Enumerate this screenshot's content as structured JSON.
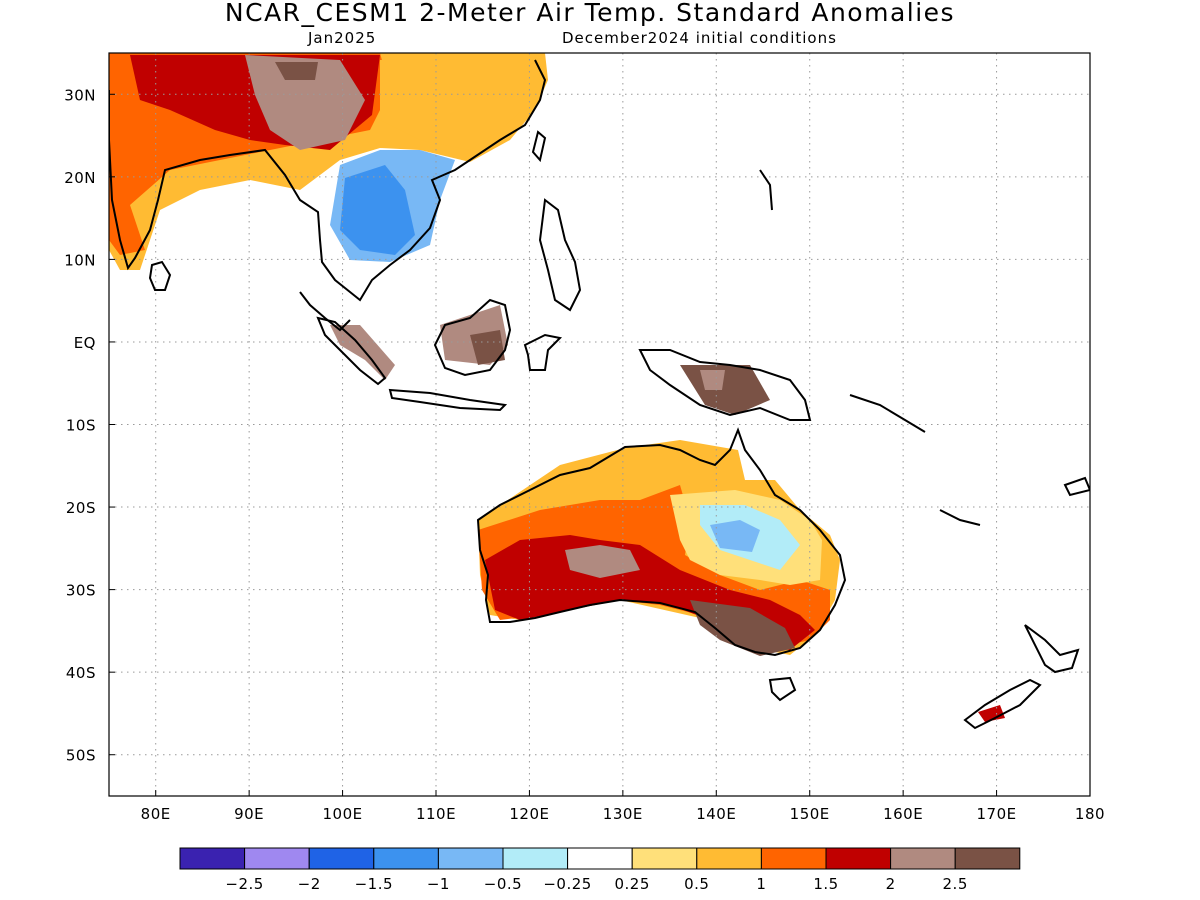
{
  "title": "NCAR_CESM1 2-Meter Air Temp. Standard Anomalies",
  "subtitle_left": "Jan2025",
  "subtitle_right": "December2024 initial conditions",
  "map": {
    "lon_range": [
      75,
      180
    ],
    "lat_range": [
      -55,
      35
    ],
    "grid": "dotted",
    "lat_ticks": [
      {
        "value": 30,
        "label": "30N"
      },
      {
        "value": 20,
        "label": "20N"
      },
      {
        "value": 10,
        "label": "10N"
      },
      {
        "value": 0,
        "label": "EQ"
      },
      {
        "value": -10,
        "label": "10S"
      },
      {
        "value": -20,
        "label": "20S"
      },
      {
        "value": -30,
        "label": "30S"
      },
      {
        "value": -40,
        "label": "40S"
      },
      {
        "value": -50,
        "label": "50S"
      }
    ],
    "lon_ticks": [
      {
        "value": 80,
        "label": "80E"
      },
      {
        "value": 90,
        "label": "90E"
      },
      {
        "value": 100,
        "label": "100E"
      },
      {
        "value": 110,
        "label": "110E"
      },
      {
        "value": 120,
        "label": "120E"
      },
      {
        "value": 130,
        "label": "130E"
      },
      {
        "value": 140,
        "label": "140E"
      },
      {
        "value": 150,
        "label": "150E"
      },
      {
        "value": 160,
        "label": "160E"
      },
      {
        "value": 170,
        "label": "170E"
      },
      {
        "value": 180,
        "label": "180"
      }
    ]
  },
  "colorbar": {
    "colors": [
      "#3a22b0",
      "#9f88f0",
      "#1f63e6",
      "#3c92ef",
      "#78b8f5",
      "#b2ecf8",
      "#ffffff",
      "#ffe07a",
      "#ffbb33",
      "#ff6400",
      "#c00000",
      "#b08a80",
      "#7a5245"
    ],
    "labels": [
      "-2.5",
      "-2",
      "-1.5",
      "-1",
      "-0.5",
      "-0.25",
      "0.25",
      "0.5",
      "1",
      "1.5",
      "2",
      "2.5"
    ]
  },
  "regions": [
    {
      "name": "south-asia-warm-region",
      "level": "0.5"
    },
    {
      "name": "south-asia-orange-region",
      "level": "1"
    },
    {
      "name": "tibet-orange-region",
      "level": "1.5"
    },
    {
      "name": "tibet-red-region",
      "level": "2"
    },
    {
      "name": "tibet-brown-region",
      "level": "2.5"
    },
    {
      "name": "china-yellow-region",
      "level": "0.5"
    },
    {
      "name": "indochina-cool-region",
      "level": "-0.5"
    },
    {
      "name": "indochina-blue-region",
      "level": "-1"
    },
    {
      "name": "sumatra-red-region",
      "level": "2"
    },
    {
      "name": "borneo-red-region",
      "level": "2"
    },
    {
      "name": "borneo-brown-region",
      "level": "2.5"
    },
    {
      "name": "new-guinea-brown-region",
      "level": "2.5"
    },
    {
      "name": "new-guinea-red-region",
      "level": "2"
    },
    {
      "name": "australia-yellow-region",
      "level": "0.5"
    },
    {
      "name": "australia-amber-region",
      "level": "1"
    },
    {
      "name": "australia-orange-region",
      "level": "1.5"
    },
    {
      "name": "australia-white-region",
      "level": "0.25"
    },
    {
      "name": "australia-cyan-region",
      "level": "-0.25"
    },
    {
      "name": "australia-blue-region",
      "level": "-0.5"
    },
    {
      "name": "australia-red-region",
      "level": "2"
    },
    {
      "name": "australia-brown-region",
      "level": "2.5"
    },
    {
      "name": "new-zealand-orange-region",
      "level": "1.5"
    }
  ]
}
